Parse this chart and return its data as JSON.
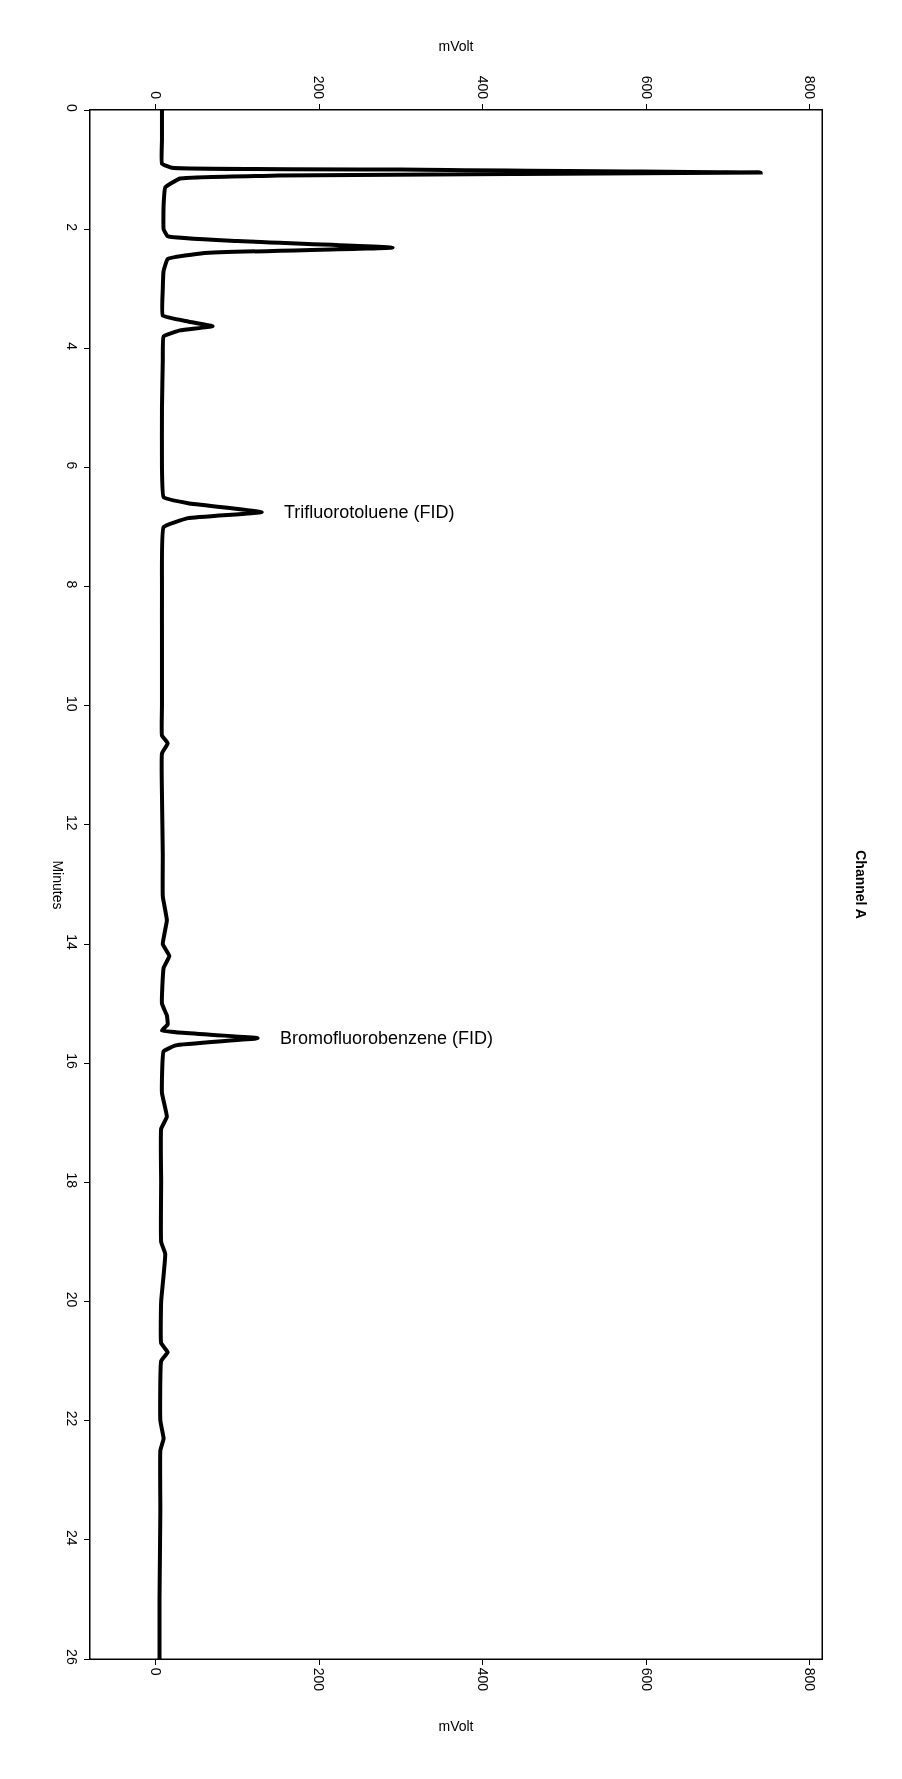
{
  "chart_data": {
    "type": "line",
    "orientation": "horizontal",
    "title": "Channel A",
    "xlabel": "mVolt",
    "x2label": "mVolt",
    "ylabel": "Minutes",
    "x": [
      0,
      0.5,
      0.9,
      0.97,
      1.0,
      1.05,
      1.1,
      1.15,
      1.3,
      1.6,
      2.0,
      2.12,
      2.2,
      2.31,
      2.4,
      2.5,
      2.7,
      3.0,
      3.45,
      3.55,
      3.63,
      3.7,
      3.8,
      4.2,
      5.0,
      6.0,
      6.5,
      6.6,
      6.75,
      6.85,
      7.0,
      8.0,
      9.0,
      10.0,
      10.5,
      10.63,
      10.8,
      11.5,
      12.5,
      13.2,
      13.6,
      14.0,
      14.2,
      14.4,
      15.0,
      15.2,
      15.35,
      15.45,
      15.58,
      15.7,
      15.8,
      16.5,
      16.9,
      17.1,
      18.0,
      19.0,
      19.2,
      20.0,
      20.7,
      20.85,
      21.0,
      22.0,
      22.3,
      22.5,
      23.5,
      25.0,
      26.0
    ],
    "series": [
      {
        "color": "#000000",
        "values": [
          8,
          8,
          8,
          20,
          300,
          740,
          150,
          30,
          12,
          10,
          10,
          15,
          100,
          290,
          60,
          15,
          10,
          9,
          9,
          40,
          70,
          30,
          10,
          9,
          8,
          8,
          10,
          40,
          130,
          40,
          10,
          8,
          8,
          8,
          8,
          15,
          8,
          8,
          9,
          9,
          14,
          9,
          17,
          10,
          8,
          14,
          15,
          8,
          125,
          25,
          10,
          8,
          14,
          7,
          7,
          7,
          12,
          7,
          7,
          15,
          7,
          6,
          10,
          6,
          6,
          5,
          5
        ]
      }
    ],
    "xlim": [
      -80,
      815
    ],
    "xticks": [
      0,
      200,
      400,
      600,
      800
    ],
    "x2lim": [
      -80,
      815
    ],
    "x2ticks": [
      0,
      200,
      400,
      600,
      800
    ],
    "ylim": [
      26,
      0
    ],
    "yticks": [
      0,
      2,
      4,
      6,
      8,
      10,
      12,
      14,
      16,
      18,
      20,
      22,
      24,
      26
    ],
    "annotations": [
      {
        "text": "Trifluorotoluene (FID)",
        "x": 130,
        "y": 6.75
      },
      {
        "text": "Bromofluorobenzene (FID)",
        "x": 125,
        "y": 15.58
      }
    ]
  }
}
